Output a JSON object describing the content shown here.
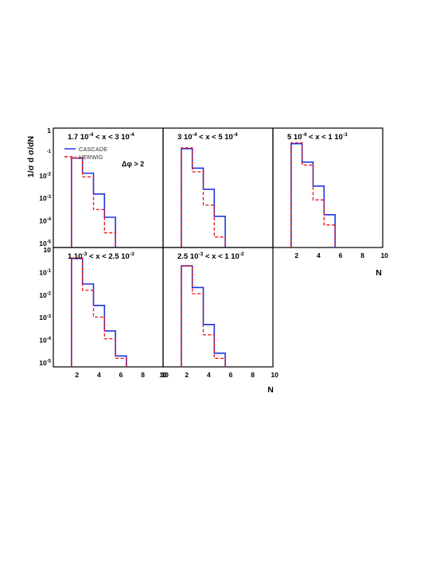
{
  "figure": {
    "y_axis_label": "1/σ d σ/dN",
    "x_axis_label": "N",
    "delta_phi_label": "Δφ > 2",
    "colors": {
      "cascade": "#2233dd",
      "herwig": "#ee1111",
      "frame": "#000000"
    }
  },
  "chart_data": [
    {
      "type": "histogram",
      "panel": "top-left",
      "title": "1.7 10⁻⁴ < x < 3 10⁻⁴",
      "title_parts": [
        "1.7 10",
        "-4",
        " < x < 3 10",
        "-4"
      ],
      "legend": {
        "placement": "top-left",
        "entries": [
          "CASCADE",
          "HERWIG"
        ]
      },
      "x_bin_edges": [
        1.5,
        2.5,
        3.5,
        4.5,
        5.5
      ],
      "ylim": [
        1e-05,
        1
      ],
      "log_y": true,
      "y_ticks": [
        {
          "base": "1",
          "exp": ""
        },
        {
          "base": "",
          "exp": "-1"
        },
        {
          "base": "10",
          "exp": "-2"
        },
        {
          "base": "10",
          "exp": "-3"
        },
        {
          "base": "10",
          "exp": "-4"
        },
        {
          "base": "10",
          "exp": "-5"
        }
      ],
      "x_ticks": [],
      "series": [
        {
          "name": "CASCADE",
          "style": "solid",
          "values": [
            0.045,
            0.0095,
            0.0011,
            0.0001
          ]
        },
        {
          "name": "HERWIG",
          "style": "dashed",
          "values": [
            0.045,
            0.0065,
            0.00022,
            2e-05
          ]
        }
      ]
    },
    {
      "type": "histogram",
      "panel": "top-middle",
      "title": "3 10⁻⁴ < x < 5 10⁻⁴",
      "title_parts": [
        "3 10",
        "-4",
        " < x < 5 10",
        "-4"
      ],
      "x_bin_edges": [
        1.5,
        2.5,
        3.5,
        4.5,
        5.5
      ],
      "ylim": [
        1e-05,
        1
      ],
      "log_y": true,
      "y_ticks": [],
      "x_ticks": [],
      "series": [
        {
          "name": "CASCADE",
          "style": "solid",
          "values": [
            0.12,
            0.016,
            0.0018,
            0.00011
          ]
        },
        {
          "name": "HERWIG",
          "style": "dashed",
          "values": [
            0.13,
            0.011,
            0.00035,
            1.3e-05
          ]
        }
      ]
    },
    {
      "type": "histogram",
      "panel": "top-right",
      "title": "5 10⁻⁴ < x < 1 10⁻³",
      "title_parts": [
        "5 10",
        "-4",
        " < x < 1 10",
        "-3"
      ],
      "x_bin_edges": [
        1.5,
        2.5,
        3.5,
        4.5,
        5.5
      ],
      "ylim": [
        1e-05,
        1
      ],
      "log_y": true,
      "y_ticks": [],
      "x_ticks": [
        "2",
        "4",
        "6",
        "8",
        "10"
      ],
      "series": [
        {
          "name": "CASCADE",
          "style": "solid",
          "values": [
            0.2,
            0.03,
            0.0025,
            0.00013
          ]
        },
        {
          "name": "HERWIG",
          "style": "dashed",
          "values": [
            0.22,
            0.022,
            0.0006,
            4.5e-05
          ]
        }
      ]
    },
    {
      "type": "histogram",
      "panel": "bottom-left",
      "title": "1 10⁻³ < x < 2.5 10⁻³",
      "title_parts": [
        "1 10",
        "-3",
        " < x < 2.5 10",
        "-3"
      ],
      "x_bin_edges": [
        1.5,
        2.5,
        3.5,
        4.5,
        5.5,
        6.5
      ],
      "ylim": [
        1e-05,
        1
      ],
      "log_y": true,
      "y_ticks": [
        {
          "base": "10",
          "exp": ""
        },
        {
          "base": "10",
          "exp": "-1"
        },
        {
          "base": "10",
          "exp": "-2"
        },
        {
          "base": "10",
          "exp": "-3"
        },
        {
          "base": "10",
          "exp": "-4"
        },
        {
          "base": "10",
          "exp": "-5"
        }
      ],
      "x_ticks": [
        "2",
        "4",
        "6",
        "8",
        "10"
      ],
      "series": [
        {
          "name": "CASCADE",
          "style": "solid",
          "values": [
            0.32,
            0.023,
            0.0025,
            0.00018,
            1.35e-05
          ]
        },
        {
          "name": "HERWIG",
          "style": "dashed",
          "values": [
            0.34,
            0.012,
            0.00075,
            8e-05,
            1.05e-05
          ]
        }
      ]
    },
    {
      "type": "histogram",
      "panel": "bottom-middle",
      "title": "2.5 10⁻³ < x < 1 10⁻²",
      "title_parts": [
        "2.5 10",
        "-3",
        " < x < 1 10",
        "-2"
      ],
      "x_bin_edges": [
        1.5,
        2.5,
        3.5,
        4.5,
        5.5
      ],
      "ylim": [
        1e-05,
        1
      ],
      "log_y": true,
      "y_ticks": [],
      "x_ticks": [
        "10",
        "2",
        "4",
        "6",
        "8",
        "10"
      ],
      "series": [
        {
          "name": "CASCADE",
          "style": "solid",
          "values": [
            0.15,
            0.016,
            0.00035,
            1.8e-05
          ]
        },
        {
          "name": "HERWIG",
          "style": "dashed",
          "values": [
            0.15,
            0.0085,
            0.00012,
            1.05e-05
          ]
        }
      ]
    }
  ]
}
